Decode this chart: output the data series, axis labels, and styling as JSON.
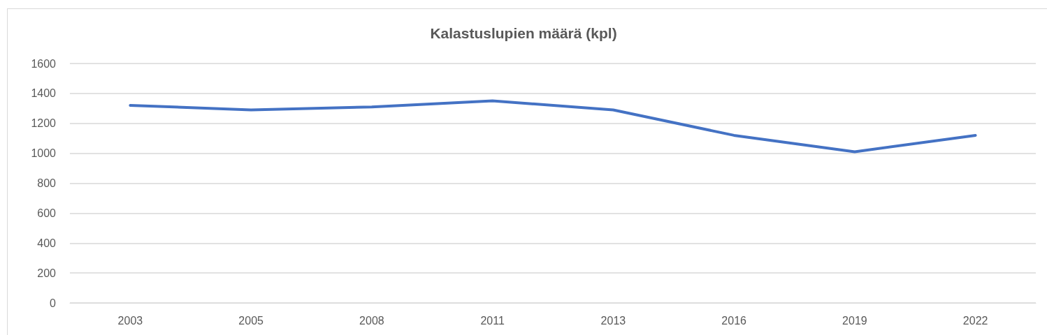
{
  "chart_data": {
    "type": "line",
    "title": "Kalastuslupien määrä (kpl)",
    "categories": [
      "2003",
      "2005",
      "2008",
      "2011",
      "2013",
      "2016",
      "2019",
      "2022"
    ],
    "series": [
      {
        "color": "#4472c4",
        "values": [
          1320,
          1290,
          1310,
          1350,
          1290,
          1120,
          1010,
          1120
        ]
      }
    ],
    "ylim": [
      0,
      1600
    ],
    "yticks": [
      0,
      200,
      400,
      600,
      800,
      1000,
      1200,
      1400,
      1600
    ],
    "grid": "y",
    "marker": "none",
    "line_style": "solid"
  }
}
